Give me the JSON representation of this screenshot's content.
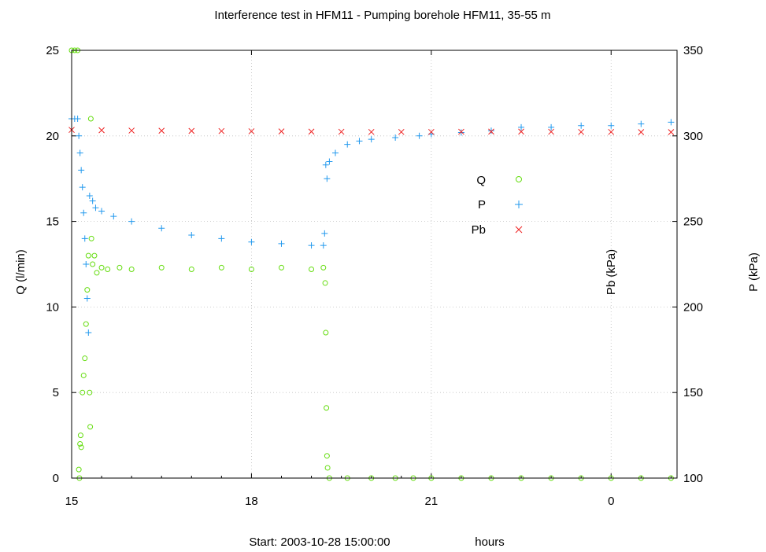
{
  "chart_data": {
    "type": "scatter",
    "title": "Interference test in HFM11 - Pumping borehole HFM11, 35-55 m",
    "xlabel_start": "Start: 2003-10-28 15:00:00",
    "xlabel_unit": "hours",
    "ylabel_left": "Q  (l/min)",
    "ylabel_right_inner": "Pb (kPa)",
    "ylabel_right_outer": "P  (kPa)",
    "x_range_hours": [
      0,
      10.1
    ],
    "x_ticks": [
      {
        "hours": 0,
        "label": "15"
      },
      {
        "hours": 3,
        "label": "18"
      },
      {
        "hours": 6,
        "label": "21"
      },
      {
        "hours": 9,
        "label": "0"
      }
    ],
    "y_left_range": [
      0,
      25
    ],
    "y_left_ticks": [
      "0",
      "5",
      "10",
      "15",
      "20",
      "25"
    ],
    "y_right_range": [
      100,
      350
    ],
    "y_right_ticks": [
      "100",
      "150",
      "200",
      "250",
      "300",
      "350"
    ],
    "grid": true,
    "legend_position": "upper-right",
    "series": [
      {
        "name": "Q",
        "axis": "left",
        "marker": "circle",
        "color": "#66dd11",
        "points": [
          [
            0.0,
            25.0
          ],
          [
            0.05,
            25.0
          ],
          [
            0.1,
            25.0
          ],
          [
            0.12,
            0.5
          ],
          [
            0.13,
            0.0
          ],
          [
            0.14,
            2.0
          ],
          [
            0.15,
            2.5
          ],
          [
            0.16,
            1.8
          ],
          [
            0.18,
            5.0
          ],
          [
            0.2,
            6.0
          ],
          [
            0.22,
            7.0
          ],
          [
            0.24,
            9.0
          ],
          [
            0.26,
            11.0
          ],
          [
            0.28,
            13.0
          ],
          [
            0.3,
            5.0
          ],
          [
            0.31,
            3.0
          ],
          [
            0.32,
            21.0
          ],
          [
            0.33,
            14.0
          ],
          [
            0.35,
            12.5
          ],
          [
            0.38,
            13.0
          ],
          [
            0.42,
            12.0
          ],
          [
            0.5,
            12.3
          ],
          [
            0.6,
            12.2
          ],
          [
            0.8,
            12.3
          ],
          [
            1.0,
            12.2
          ],
          [
            1.5,
            12.3
          ],
          [
            2.0,
            12.2
          ],
          [
            2.5,
            12.3
          ],
          [
            3.0,
            12.2
          ],
          [
            3.5,
            12.3
          ],
          [
            4.0,
            12.2
          ],
          [
            4.2,
            12.3
          ],
          [
            4.23,
            11.4
          ],
          [
            4.24,
            8.5
          ],
          [
            4.25,
            4.1
          ],
          [
            4.26,
            1.3
          ],
          [
            4.27,
            0.6
          ],
          [
            4.3,
            0.0
          ],
          [
            4.6,
            0.0
          ],
          [
            5.0,
            0.0
          ],
          [
            5.4,
            0.0
          ],
          [
            5.7,
            0.0
          ],
          [
            6.0,
            0.0
          ],
          [
            6.5,
            0.0
          ],
          [
            7.0,
            0.0
          ],
          [
            7.5,
            0.0
          ],
          [
            8.0,
            0.0
          ],
          [
            8.5,
            0.0
          ],
          [
            9.0,
            0.0
          ],
          [
            9.5,
            0.0
          ],
          [
            10.0,
            0.0
          ]
        ]
      },
      {
        "name": "P",
        "axis": "right",
        "marker": "plus",
        "color": "#2299ee",
        "points": [
          [
            0.0,
            310
          ],
          [
            0.05,
            310
          ],
          [
            0.1,
            310
          ],
          [
            0.12,
            300
          ],
          [
            0.14,
            290
          ],
          [
            0.16,
            280
          ],
          [
            0.18,
            270
          ],
          [
            0.2,
            255
          ],
          [
            0.22,
            240
          ],
          [
            0.24,
            225
          ],
          [
            0.26,
            205
          ],
          [
            0.28,
            185
          ],
          [
            0.3,
            265
          ],
          [
            0.35,
            262
          ],
          [
            0.4,
            258
          ],
          [
            0.5,
            256
          ],
          [
            0.7,
            253
          ],
          [
            1.0,
            250
          ],
          [
            1.5,
            246
          ],
          [
            2.0,
            242
          ],
          [
            2.5,
            240
          ],
          [
            3.0,
            238
          ],
          [
            3.5,
            237
          ],
          [
            4.0,
            236
          ],
          [
            4.2,
            236
          ],
          [
            4.22,
            243
          ],
          [
            4.24,
            283
          ],
          [
            4.26,
            275
          ],
          [
            4.3,
            285
          ],
          [
            4.4,
            290
          ],
          [
            4.6,
            295
          ],
          [
            4.8,
            297
          ],
          [
            5.0,
            298
          ],
          [
            5.4,
            299
          ],
          [
            5.8,
            300
          ],
          [
            6.0,
            301
          ],
          [
            6.5,
            302
          ],
          [
            7.0,
            303
          ],
          [
            7.5,
            305
          ],
          [
            8.0,
            305
          ],
          [
            8.5,
            306
          ],
          [
            9.0,
            306
          ],
          [
            9.5,
            307
          ],
          [
            10.0,
            308
          ]
        ]
      },
      {
        "name": "Pb",
        "axis": "right",
        "marker": "cross",
        "color": "#ee2222",
        "points": [
          [
            0.0,
            303.5
          ],
          [
            0.5,
            303.3
          ],
          [
            1.0,
            303.1
          ],
          [
            1.5,
            303.0
          ],
          [
            2.0,
            302.9
          ],
          [
            2.5,
            302.8
          ],
          [
            3.0,
            302.7
          ],
          [
            3.5,
            302.6
          ],
          [
            4.0,
            302.5
          ],
          [
            4.5,
            302.4
          ],
          [
            5.0,
            302.3
          ],
          [
            5.5,
            302.3
          ],
          [
            6.0,
            302.3
          ],
          [
            6.5,
            302.4
          ],
          [
            7.0,
            302.5
          ],
          [
            7.5,
            302.5
          ],
          [
            8.0,
            302.4
          ],
          [
            8.5,
            302.3
          ],
          [
            9.0,
            302.3
          ],
          [
            9.5,
            302.2
          ],
          [
            10.0,
            302.2
          ]
        ]
      }
    ]
  }
}
